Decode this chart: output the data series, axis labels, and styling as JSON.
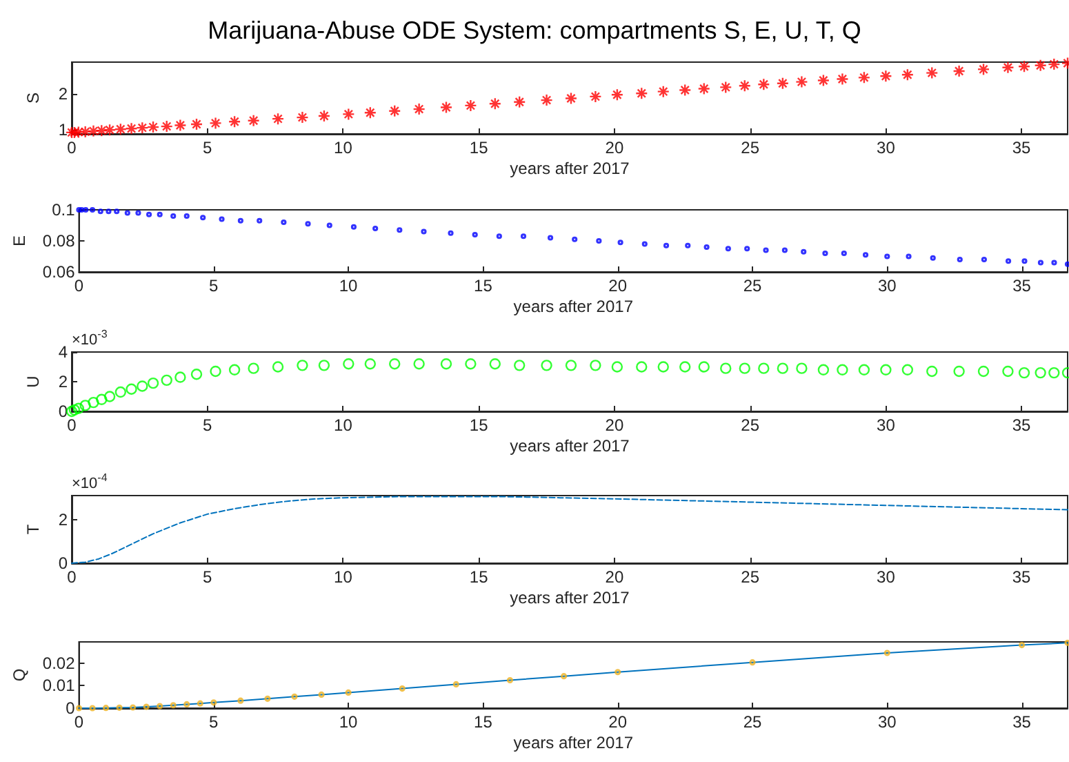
{
  "chart_data": [
    {
      "type": "scatter",
      "title": "Marijuana-Abuse ODE System: compartments S, E, U, T, Q",
      "xlabel": "years after 2017",
      "ylabel": "S",
      "marker": "cross",
      "x": [
        0,
        0.1,
        0.25,
        0.5,
        0.8,
        1.1,
        1.4,
        1.8,
        2.2,
        2.6,
        3.0,
        3.5,
        4.0,
        4.6,
        5.3,
        6.0,
        6.7,
        7.6,
        8.5,
        9.3,
        10.2,
        11,
        11.9,
        12.8,
        13.8,
        14.7,
        15.6,
        16.5,
        17.5,
        18.4,
        19.3,
        20.1,
        21,
        21.8,
        22.6,
        23.3,
        24.1,
        24.8,
        25.5,
        26.2,
        26.9,
        27.7,
        28.4,
        29.2,
        30,
        30.8,
        31.7,
        32.7,
        33.6,
        34.5,
        35.1,
        35.7,
        36.2,
        36.7
      ],
      "series": [
        {
          "color": "#ff0000",
          "values": [
            0.92,
            0.92,
            0.93,
            0.94,
            0.96,
            0.97,
            0.99,
            1.01,
            1.03,
            1.05,
            1.07,
            1.09,
            1.12,
            1.15,
            1.18,
            1.22,
            1.25,
            1.3,
            1.34,
            1.38,
            1.43,
            1.47,
            1.52,
            1.57,
            1.62,
            1.67,
            1.72,
            1.77,
            1.82,
            1.87,
            1.92,
            1.97,
            2.01,
            2.06,
            2.1,
            2.14,
            2.18,
            2.22,
            2.26,
            2.29,
            2.33,
            2.37,
            2.41,
            2.45,
            2.49,
            2.53,
            2.58,
            2.63,
            2.68,
            2.73,
            2.76,
            2.79,
            2.82,
            2.85
          ]
        }
      ],
      "xlim": [
        0,
        36.7
      ],
      "xticks": [
        0,
        5,
        10,
        15,
        20,
        25,
        30,
        35
      ],
      "ylim": [
        0.88,
        2.88
      ],
      "yticks": [
        1,
        2
      ],
      "grid": false
    },
    {
      "type": "scatter",
      "xlabel": "years after 2017",
      "ylabel": "E",
      "marker": "circle",
      "x": [
        0,
        0.1,
        0.25,
        0.5,
        0.8,
        1.1,
        1.4,
        1.8,
        2.2,
        2.6,
        3.0,
        3.5,
        4.0,
        4.6,
        5.3,
        6.0,
        6.7,
        7.6,
        8.5,
        9.3,
        10.2,
        11,
        11.9,
        12.8,
        13.8,
        14.7,
        15.6,
        16.5,
        17.5,
        18.4,
        19.3,
        20.1,
        21,
        21.8,
        22.6,
        23.3,
        24.1,
        24.8,
        25.5,
        26.2,
        26.9,
        27.7,
        28.4,
        29.2,
        30,
        30.8,
        31.7,
        32.7,
        33.6,
        34.5,
        35.1,
        35.7,
        36.2,
        36.7
      ],
      "series": [
        {
          "color": "#0000ff",
          "values": [
            0.1,
            0.1,
            0.1,
            0.1,
            0.099,
            0.099,
            0.099,
            0.098,
            0.098,
            0.097,
            0.097,
            0.096,
            0.096,
            0.095,
            0.094,
            0.093,
            0.093,
            0.092,
            0.091,
            0.09,
            0.089,
            0.088,
            0.087,
            0.086,
            0.085,
            0.084,
            0.083,
            0.083,
            0.082,
            0.081,
            0.08,
            0.079,
            0.078,
            0.077,
            0.077,
            0.076,
            0.075,
            0.075,
            0.074,
            0.074,
            0.073,
            0.072,
            0.072,
            0.071,
            0.07,
            0.07,
            0.069,
            0.068,
            0.068,
            0.067,
            0.067,
            0.066,
            0.066,
            0.065
          ]
        }
      ],
      "xlim": [
        0,
        36.7
      ],
      "xticks": [
        0,
        5,
        10,
        15,
        20,
        25,
        30,
        35
      ],
      "ylim": [
        0.06,
        0.1
      ],
      "yticks": [
        0.06,
        0.08,
        0.1
      ],
      "grid": false
    },
    {
      "type": "scatter",
      "xlabel": "years after 2017",
      "ylabel": "U",
      "marker": "circle",
      "annotations": [
        "×10$^{-3}$"
      ],
      "x": [
        0,
        0.1,
        0.25,
        0.5,
        0.8,
        1.1,
        1.4,
        1.8,
        2.2,
        2.6,
        3.0,
        3.5,
        4.0,
        4.6,
        5.3,
        6.0,
        6.7,
        7.6,
        8.5,
        9.3,
        10.2,
        11,
        11.9,
        12.8,
        13.8,
        14.7,
        15.6,
        16.5,
        17.5,
        18.4,
        19.3,
        20.1,
        21,
        21.8,
        22.6,
        23.3,
        24.1,
        24.8,
        25.5,
        26.2,
        26.9,
        27.7,
        28.4,
        29.2,
        30,
        30.8,
        31.7,
        32.7,
        33.6,
        34.5,
        35.1,
        35.7,
        36.2,
        36.7
      ],
      "series": [
        {
          "color": "#00ff00",
          "values": [
            0,
            0.1,
            0.2,
            0.4,
            0.6,
            0.8,
            1.0,
            1.3,
            1.5,
            1.7,
            1.9,
            2.1,
            2.3,
            2.5,
            2.7,
            2.8,
            2.9,
            3.0,
            3.1,
            3.1,
            3.2,
            3.2,
            3.2,
            3.2,
            3.2,
            3.2,
            3.2,
            3.1,
            3.1,
            3.1,
            3.1,
            3.0,
            3.0,
            3.0,
            3.0,
            3.0,
            2.9,
            2.9,
            2.9,
            2.9,
            2.9,
            2.8,
            2.8,
            2.8,
            2.8,
            2.8,
            2.7,
            2.7,
            2.7,
            2.7,
            2.6,
            2.6,
            2.6,
            2.6
          ]
        }
      ],
      "xlim": [
        0,
        36.7
      ],
      "xticks": [
        0,
        5,
        10,
        15,
        20,
        25,
        30,
        35
      ],
      "ylim": [
        0,
        4
      ],
      "yticks": [
        0,
        2,
        4
      ],
      "grid": false
    },
    {
      "type": "line",
      "xlabel": "years after 2017",
      "ylabel": "T",
      "marker": "none",
      "line_style": "dashed",
      "annotations": [
        "×10$^{-4}$"
      ],
      "x": [
        0,
        0.5,
        1,
        1.5,
        2,
        2.5,
        3,
        3.5,
        4,
        4.5,
        5,
        6,
        7,
        8,
        9,
        10,
        12,
        14,
        16,
        18,
        20,
        25,
        30,
        35,
        36.7
      ],
      "series": [
        {
          "color": "#0072bd",
          "values": [
            0,
            0.05,
            0.2,
            0.45,
            0.75,
            1.05,
            1.35,
            1.6,
            1.85,
            2.05,
            2.25,
            2.5,
            2.7,
            2.85,
            2.95,
            3.0,
            3.05,
            3.05,
            3.05,
            3.0,
            2.95,
            2.8,
            2.65,
            2.5,
            2.45
          ]
        }
      ],
      "xlim": [
        0,
        36.7
      ],
      "xticks": [
        0,
        5,
        10,
        15,
        20,
        25,
        30,
        35
      ],
      "ylim": [
        0,
        3.1
      ],
      "yticks": [
        0,
        2
      ],
      "grid": false
    },
    {
      "type": "line",
      "xlabel": "years after 2017",
      "ylabel": "Q",
      "marker": "none",
      "line_style": "solid",
      "x": [
        0,
        0.5,
        1,
        1.5,
        2,
        2.5,
        3,
        3.5,
        4,
        4.5,
        5,
        6,
        7,
        8,
        9,
        10,
        12,
        14,
        16,
        18,
        20,
        25,
        30,
        35,
        36.7
      ],
      "series": [
        {
          "color": "#0072bd",
          "values": [
            0,
            0,
            0.0001,
            0.0002,
            0.0003,
            0.0006,
            0.0009,
            0.0013,
            0.0017,
            0.0021,
            0.0025,
            0.0033,
            0.0042,
            0.0051,
            0.006,
            0.0069,
            0.0087,
            0.0106,
            0.0124,
            0.0142,
            0.016,
            0.0203,
            0.0245,
            0.028,
            0.029
          ]
        },
        {
          "type": "scatter",
          "marker": "circle",
          "color": "#edb120",
          "values": [
            0,
            0,
            0.0001,
            0.0002,
            0.0003,
            0.0006,
            0.0009,
            0.0013,
            0.0017,
            0.0021,
            0.0025,
            0.0033,
            0.0042,
            0.0051,
            0.006,
            0.0069,
            0.0087,
            0.0106,
            0.0124,
            0.0142,
            0.016,
            0.0203,
            0.0245,
            0.028,
            0.029
          ]
        }
      ],
      "xlim": [
        0,
        36.7
      ],
      "xticks": [
        0,
        5,
        10,
        15,
        20,
        25,
        30,
        35
      ],
      "ylim": [
        0,
        0.0294
      ],
      "yticks": [
        0,
        0.01,
        0.02
      ],
      "grid": false
    }
  ]
}
